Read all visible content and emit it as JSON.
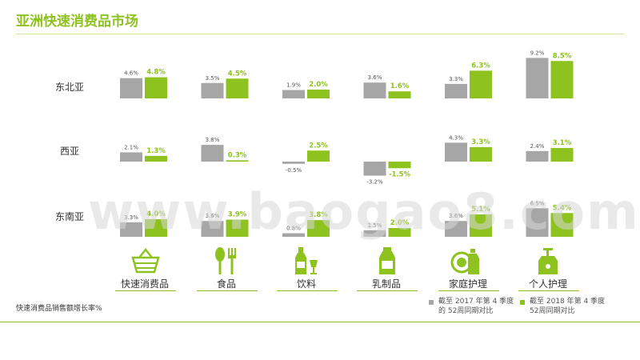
{
  "title": "亚洲快速消费品市场",
  "watermark": "www.baogao8.com",
  "footnote": "快速消费品销售额增长率%",
  "legend": [
    {
      "label": "截至 2017 年第 4 季度\n的 52周同期对比",
      "color": "#a6a6a6"
    },
    {
      "label": "截至 2018 年第 4 季度\n52周同期对比",
      "color": "#8dc21f"
    }
  ],
  "colors": {
    "accent": "#8dc21f",
    "gray": "#a6a6a6"
  },
  "categories": [
    {
      "label": "快速消费品",
      "icon": "shopping-basket-icon"
    },
    {
      "label": "食品",
      "icon": "spoon-fork-icon"
    },
    {
      "label": "饮料",
      "icon": "bottle-glass-icon"
    },
    {
      "label": "乳制品",
      "icon": "milk-bottle-icon"
    },
    {
      "label": "家庭护理",
      "icon": "dish-detergent-icon"
    },
    {
      "label": "个人护理",
      "icon": "pump-bottle-icon"
    }
  ],
  "chart_data": {
    "type": "bar",
    "title": "亚洲快速消费品市场",
    "categories": [
      "快速消费品",
      "食品",
      "饮料",
      "乳制品",
      "家庭护理",
      "个人护理"
    ],
    "series_names": [
      "截至 2017 年第 4 季度的 52周同期对比",
      "截至 2018 年第 4 季度52周同期对比"
    ],
    "unit": "%",
    "regions": [
      {
        "name": "东北亚",
        "series": [
          {
            "values": [
              4.6,
              3.5,
              1.9,
              3.6,
              3.3,
              9.2
            ]
          },
          {
            "values": [
              4.8,
              4.5,
              2.0,
              1.6,
              6.3,
              8.5
            ]
          }
        ]
      },
      {
        "name": "西亚",
        "series": [
          {
            "values": [
              2.1,
              3.8,
              -0.5,
              -3.2,
              4.3,
              2.4
            ]
          },
          {
            "values": [
              1.3,
              0.3,
              2.5,
              -1.5,
              3.3,
              3.1
            ]
          }
        ]
      },
      {
        "name": "东南亚",
        "series": [
          {
            "values": [
              3.3,
              3.6,
              0.8,
              1.5,
              3.6,
              6.5
            ]
          },
          {
            "values": [
              4.0,
              3.9,
              3.8,
              2.0,
              5.1,
              5.4
            ]
          }
        ]
      }
    ]
  }
}
